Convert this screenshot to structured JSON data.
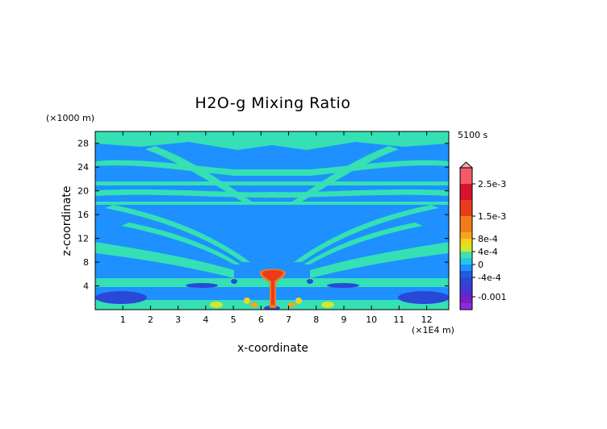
{
  "chart_data": {
    "type": "heatmap",
    "title": "H2O-g Mixing Ratio",
    "xlabel": "x-coordinate",
    "ylabel": "z-coordinate",
    "x_unit": "(×1E4 m)",
    "y_unit": "(×1000 m)",
    "time_label": "5100 s",
    "xlim": [
      0,
      12.8
    ],
    "ylim": [
      0,
      30
    ],
    "x_ticks": [
      1,
      2,
      3,
      4,
      5,
      6,
      7,
      8,
      9,
      10,
      11,
      12
    ],
    "y_ticks": [
      4,
      8,
      12,
      16,
      20,
      24,
      28
    ],
    "colorbar": {
      "levels": [
        -0.0014,
        -0.0012,
        -0.001,
        -0.0008,
        -0.0006,
        -0.0004,
        -0.0002,
        0,
        0.0002,
        0.0004,
        0.0006,
        0.0008,
        0.001,
        0.0015,
        0.002,
        0.0025,
        0.003
      ],
      "colors": [
        "#8a2be2",
        "#7a1fc8",
        "#5a2ad0",
        "#3b3bd6",
        "#2a48d8",
        "#1e5fe0",
        "#1e90ff",
        "#20c8e8",
        "#44e0a8",
        "#cfe830",
        "#f2d41a",
        "#f5a51d",
        "#f07d1a",
        "#ec3b1c",
        "#d9122e",
        "#f45a6a",
        "#f7a9ad"
      ],
      "tick_labels": [
        "2.5e-3",
        "1.5e-3",
        "8e-4",
        "4e-4",
        "0",
        "-4e-4",
        "-0.001"
      ],
      "tick_values": [
        0.0025,
        0.0015,
        0.0008,
        0.0004,
        0,
        -0.0004,
        -0.001
      ]
    }
  }
}
